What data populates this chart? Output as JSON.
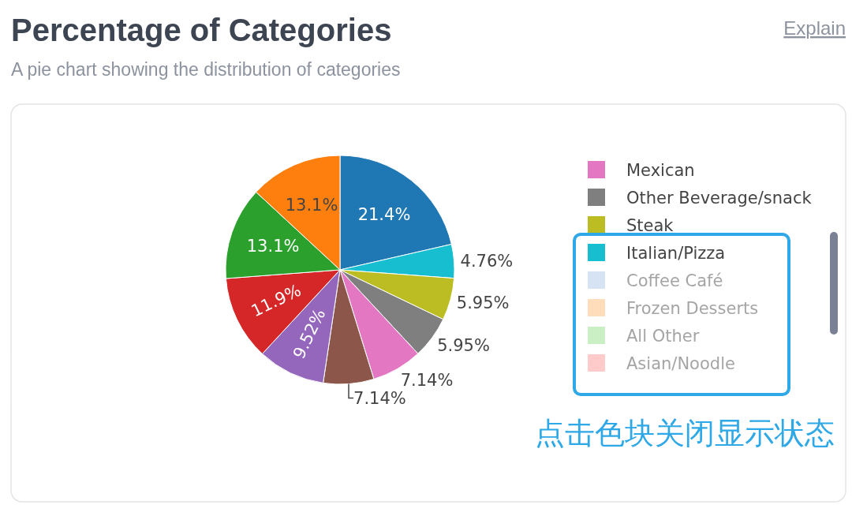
{
  "chart_data": {
    "type": "pie",
    "title": "Percentage of Categories",
    "subtitle": "A pie chart showing the distribution of categories",
    "categories": [
      null,
      null,
      null,
      null,
      null,
      null,
      "Mexican",
      "Other Beverage/snack",
      "Steak",
      "Italian/Pizza",
      "Coffee Café",
      "Frozen Desserts",
      "All Other",
      "Asian/Noodle"
    ],
    "values": [
      21.4,
      13.1,
      13.1,
      11.9,
      9.52,
      7.14,
      7.14,
      5.95,
      5.95,
      4.76,
      null,
      null,
      null,
      null
    ],
    "colors": [
      "#1f77b4",
      "#ff7f0e",
      "#2ca02c",
      "#d62728",
      "#9467bd",
      "#8c564b",
      "#e377c2",
      "#7f7f7f",
      "#bcbd22",
      "#17becf",
      "#aec7e8",
      "#ffbb78",
      "#98df8a",
      "#ff9896"
    ],
    "value_labels": [
      "21.4%",
      "13.1%",
      "13.1%",
      "11.9%",
      "9.52%",
      "7.14%",
      "7.14%",
      "5.95%",
      "5.95%",
      "4.76%",
      null,
      null,
      null,
      null
    ],
    "legend": "right",
    "annotations": [
      "Explain",
      "点击色块关闭显示状态"
    ]
  }
}
